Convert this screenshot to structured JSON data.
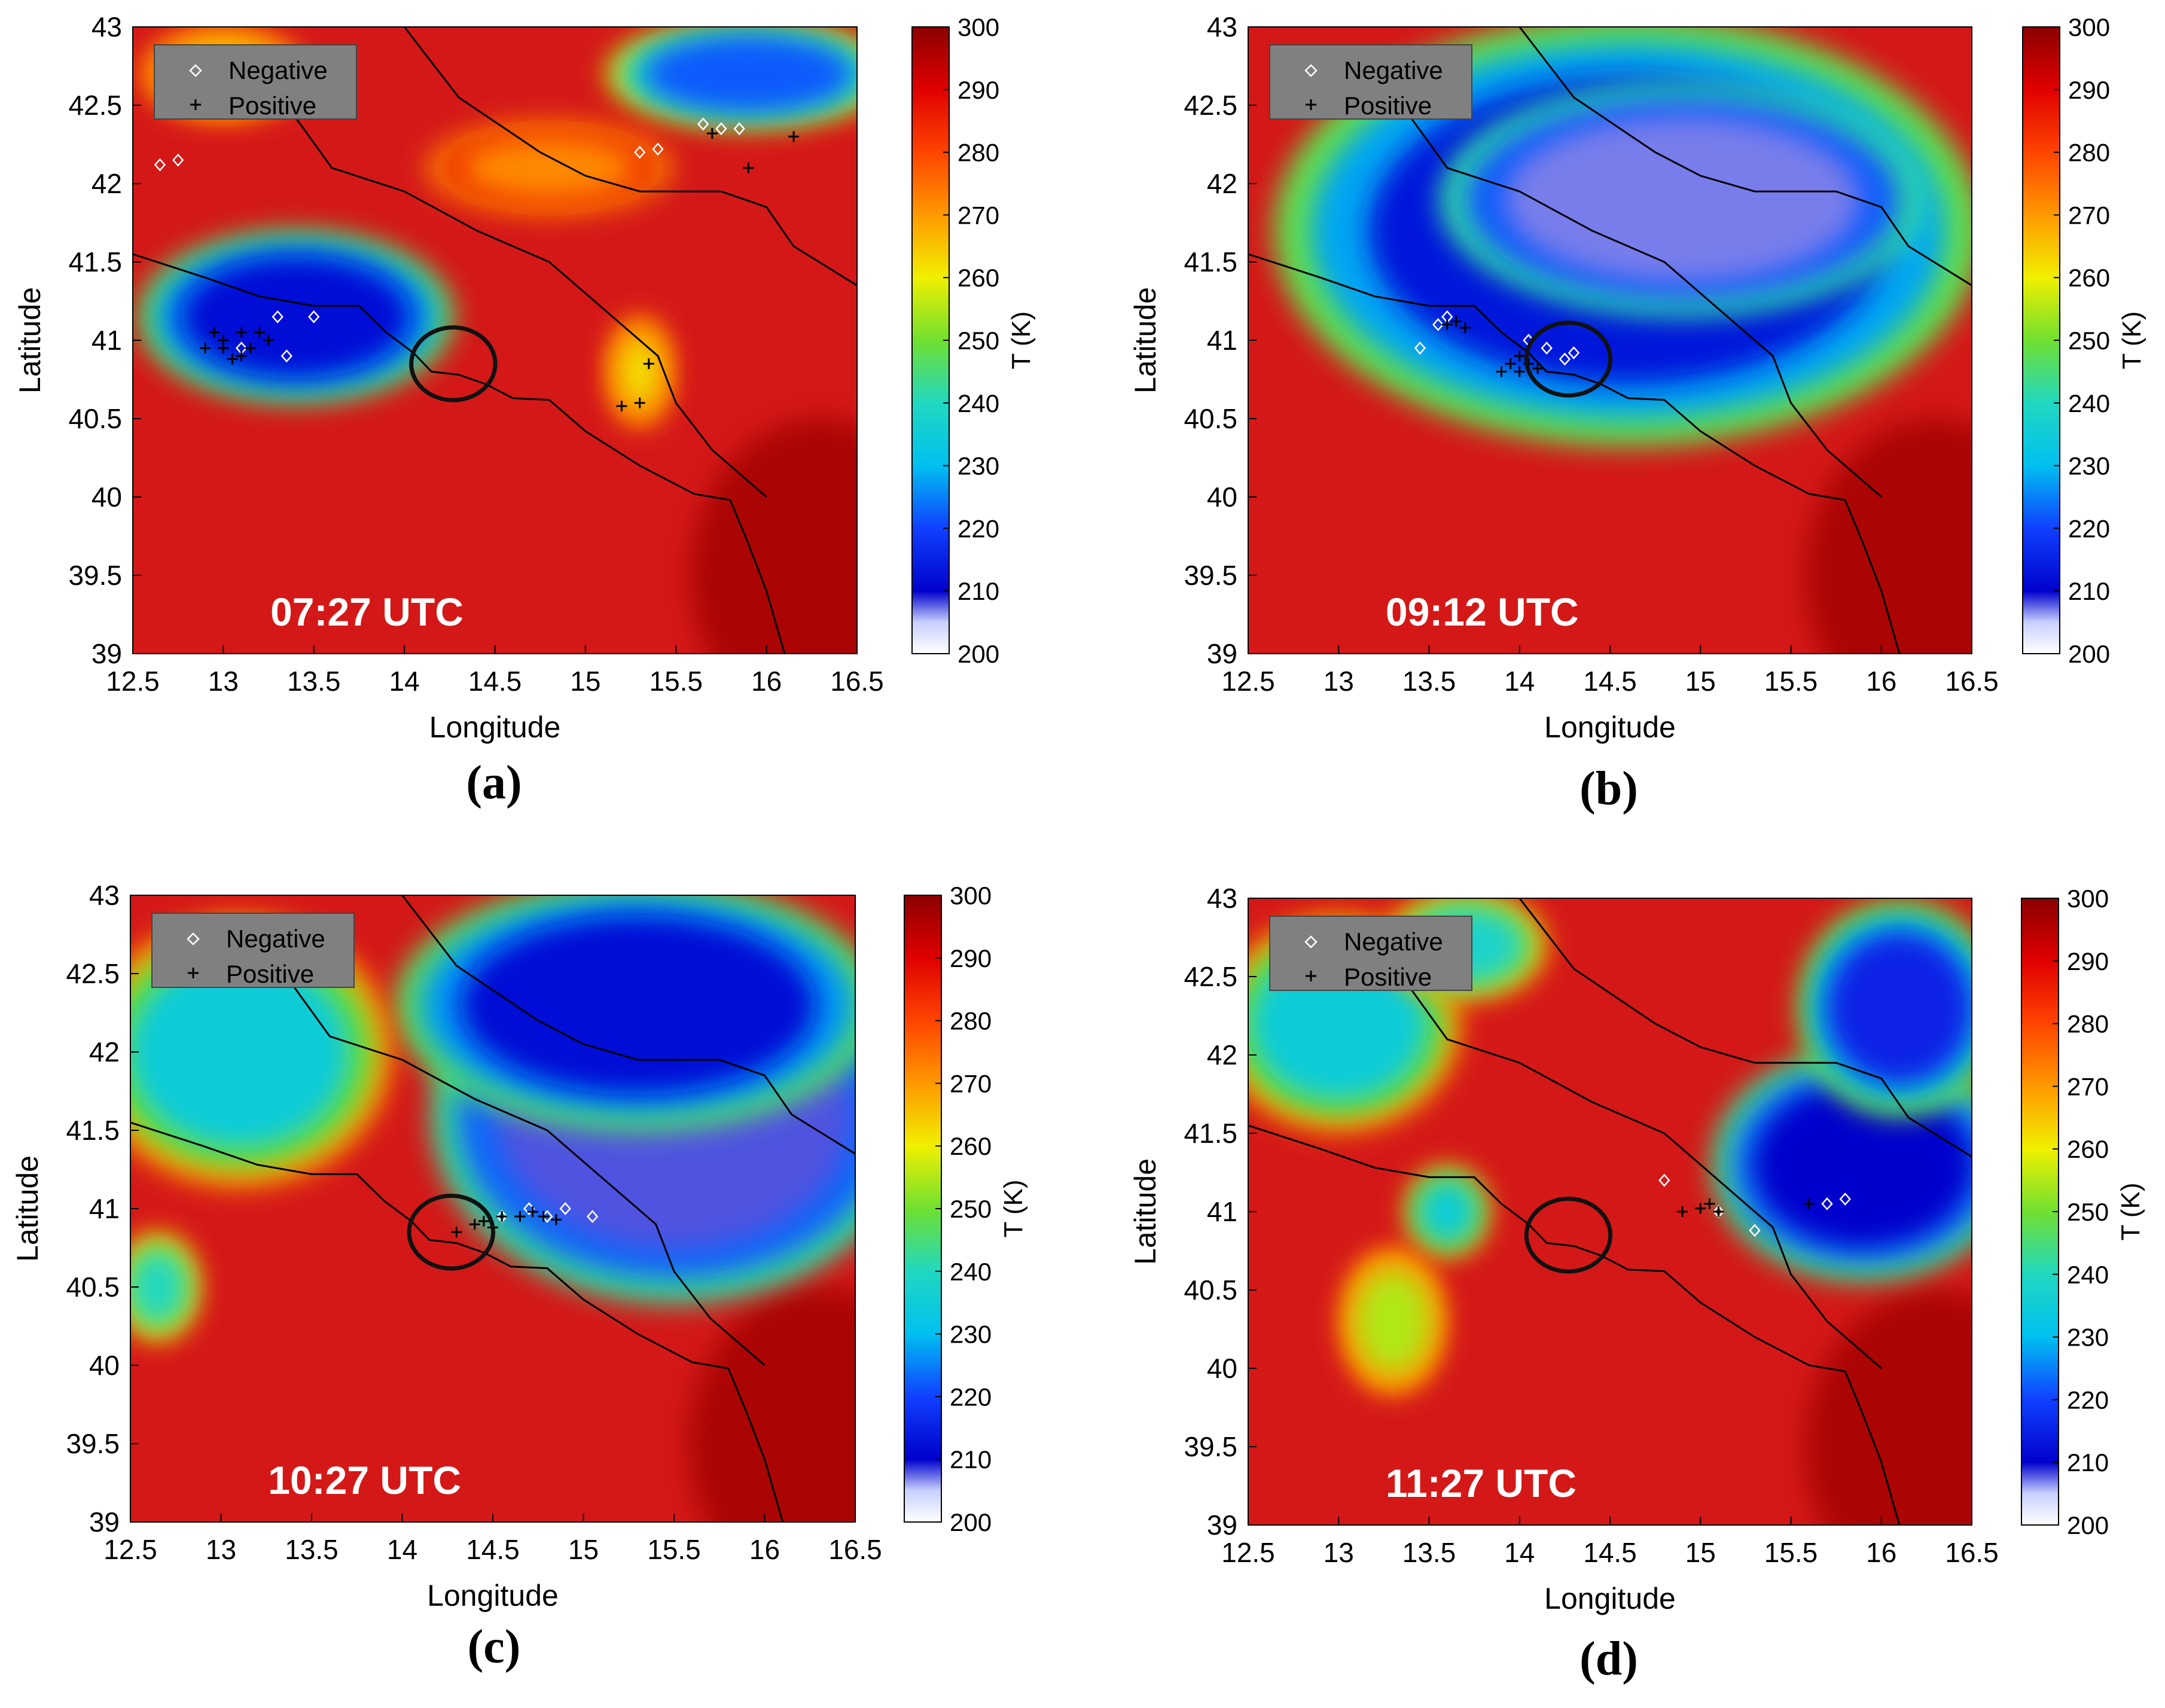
{
  "chart_data": [
    {
      "type": "heatmap",
      "panel_label": "(a)",
      "timestamp": "07:27 UTC",
      "xlabel": "Longitude",
      "ylabel": "Latitude",
      "xlim": [
        12.5,
        16.5
      ],
      "ylim": [
        39,
        43
      ],
      "xticks": [
        "12.5",
        "13",
        "13.5",
        "14",
        "14.5",
        "15",
        "15.5",
        "16",
        "16.5"
      ],
      "yticks": [
        "39",
        "39.5",
        "40",
        "40.5",
        "41",
        "41.5",
        "42",
        "42.5",
        "43"
      ],
      "colorbar": {
        "label": "T (K)",
        "range": [
          200,
          300
        ],
        "ticks": [
          "200",
          "210",
          "220",
          "230",
          "240",
          "250",
          "260",
          "270",
          "280",
          "290",
          "300"
        ]
      },
      "legend": {
        "position": "top-left",
        "entries": [
          "Negative",
          "Positive"
        ]
      },
      "circle_center": [
        14.27,
        40.85
      ],
      "cold_clouds": [
        {
          "lon": 13.4,
          "lat": 41.15,
          "rlon": 0.78,
          "rlat": 0.48,
          "t": 212
        },
        {
          "lon": 15.9,
          "lat": 42.7,
          "rlon": 0.7,
          "rlat": 0.3,
          "t": 222
        },
        {
          "lon": 13.0,
          "lat": 42.7,
          "rlon": 0.4,
          "rlat": 0.25,
          "t": 262
        },
        {
          "lon": 15.3,
          "lat": 40.8,
          "rlon": 0.15,
          "rlat": 0.3,
          "t": 262
        },
        {
          "lon": 14.8,
          "lat": 42.1,
          "rlon": 0.6,
          "rlat": 0.25,
          "t": 272
        }
      ],
      "negative_strikes": [
        [
          12.65,
          42.12
        ],
        [
          12.75,
          42.15
        ],
        [
          13.3,
          41.15
        ],
        [
          13.5,
          41.15
        ],
        [
          13.35,
          40.9
        ],
        [
          13.1,
          40.95
        ],
        [
          15.3,
          42.2
        ],
        [
          15.4,
          42.22
        ],
        [
          15.65,
          42.38
        ],
        [
          15.75,
          42.35
        ],
        [
          15.85,
          42.35
        ]
      ],
      "positive_strikes": [
        [
          12.9,
          40.95
        ],
        [
          13.0,
          41.0
        ],
        [
          13.1,
          40.9
        ],
        [
          13.2,
          41.05
        ],
        [
          12.95,
          41.05
        ],
        [
          13.05,
          40.88
        ],
        [
          13.15,
          40.95
        ],
        [
          13.25,
          41.0
        ],
        [
          13.0,
          40.95
        ],
        [
          13.1,
          41.05
        ],
        [
          15.3,
          40.6
        ],
        [
          15.2,
          40.58
        ],
        [
          15.35,
          40.85
        ],
        [
          15.7,
          42.32
        ],
        [
          15.9,
          42.1
        ],
        [
          16.15,
          42.3
        ]
      ]
    },
    {
      "type": "heatmap",
      "panel_label": "(b)",
      "timestamp": "09:12 UTC",
      "xlabel": "Longitude",
      "ylabel": "Latitude",
      "xlim": [
        12.5,
        16.5
      ],
      "ylim": [
        39,
        43
      ],
      "xticks": [
        "12.5",
        "13",
        "13.5",
        "14",
        "14.5",
        "15",
        "15.5",
        "16",
        "16.5"
      ],
      "yticks": [
        "39",
        "39.5",
        "40",
        "40.5",
        "41",
        "41.5",
        "42",
        "42.5",
        "43"
      ],
      "colorbar": {
        "label": "T (K)",
        "range": [
          200,
          300
        ],
        "ticks": [
          "200",
          "210",
          "220",
          "230",
          "240",
          "250",
          "260",
          "270",
          "280",
          "290",
          "300"
        ]
      },
      "legend": {
        "position": "top-left",
        "entries": [
          "Negative",
          "Positive"
        ]
      },
      "circle_center": [
        14.27,
        40.88
      ],
      "cold_clouds": [
        {
          "lon": 14.6,
          "lat": 41.7,
          "rlon": 1.75,
          "rlat": 1.2,
          "t": 213
        },
        {
          "lon": 14.9,
          "lat": 41.9,
          "rlon": 1.2,
          "rlat": 0.65,
          "t": 207
        }
      ],
      "negative_strikes": [
        [
          13.55,
          41.1
        ],
        [
          13.6,
          41.15
        ],
        [
          14.05,
          41.0
        ],
        [
          14.15,
          40.95
        ],
        [
          14.25,
          40.88
        ],
        [
          14.3,
          40.92
        ],
        [
          13.45,
          40.95
        ]
      ],
      "positive_strikes": [
        [
          13.6,
          41.1
        ],
        [
          13.65,
          41.12
        ],
        [
          13.7,
          41.08
        ],
        [
          13.95,
          40.85
        ],
        [
          14.0,
          40.8
        ],
        [
          14.05,
          40.85
        ],
        [
          13.9,
          40.8
        ],
        [
          14.0,
          40.9
        ],
        [
          14.1,
          40.82
        ]
      ]
    },
    {
      "type": "heatmap",
      "panel_label": "(c)",
      "timestamp": "10:27 UTC",
      "xlabel": "Longitude",
      "ylabel": "Latitude",
      "xlim": [
        12.5,
        16.5
      ],
      "ylim": [
        39,
        43
      ],
      "xticks": [
        "12.5",
        "13",
        "13.5",
        "14",
        "14.5",
        "15",
        "15.5",
        "16",
        "16.5"
      ],
      "yticks": [
        "39",
        "39.5",
        "40",
        "40.5",
        "41",
        "41.5",
        "42",
        "42.5",
        "43"
      ],
      "colorbar": {
        "label": "T (K)",
        "range": [
          200,
          300
        ],
        "ticks": [
          "200",
          "210",
          "220",
          "230",
          "240",
          "250",
          "260",
          "270",
          "280",
          "290",
          "300"
        ]
      },
      "legend": {
        "position": "top-left",
        "entries": [
          "Negative",
          "Positive"
        ]
      },
      "circle_center": [
        14.27,
        40.85
      ],
      "cold_clouds": [
        {
          "lon": 15.5,
          "lat": 41.6,
          "rlon": 1.2,
          "rlat": 1.05,
          "t": 208
        },
        {
          "lon": 15.3,
          "lat": 42.3,
          "rlon": 1.2,
          "rlat": 0.7,
          "t": 212
        },
        {
          "lon": 13.1,
          "lat": 42.0,
          "rlon": 0.75,
          "rlat": 0.75,
          "t": 235
        },
        {
          "lon": 12.65,
          "lat": 40.5,
          "rlon": 0.2,
          "rlat": 0.3,
          "t": 240
        }
      ],
      "negative_strikes": [
        [
          14.55,
          40.95
        ],
        [
          14.7,
          41.0
        ],
        [
          14.8,
          40.95
        ],
        [
          14.9,
          41.0
        ],
        [
          15.05,
          40.95
        ]
      ],
      "positive_strikes": [
        [
          14.4,
          40.9
        ],
        [
          14.45,
          40.92
        ],
        [
          14.5,
          40.88
        ],
        [
          14.55,
          40.95
        ],
        [
          14.65,
          40.95
        ],
        [
          14.72,
          40.98
        ],
        [
          14.78,
          40.95
        ],
        [
          14.85,
          40.93
        ],
        [
          14.3,
          40.85
        ]
      ]
    },
    {
      "type": "heatmap",
      "panel_label": "(d)",
      "timestamp": "11:27 UTC",
      "xlabel": "Longitude",
      "ylabel": "Latitude",
      "xlim": [
        12.5,
        16.5
      ],
      "ylim": [
        39,
        43
      ],
      "xticks": [
        "12.5",
        "13",
        "13.5",
        "14",
        "14.5",
        "15",
        "15.5",
        "16",
        "16.5"
      ],
      "yticks": [
        "39",
        "39.5",
        "40",
        "40.5",
        "41",
        "41.5",
        "42",
        "42.5",
        "43"
      ],
      "colorbar": {
        "label": "T (K)",
        "range": [
          200,
          300
        ],
        "ticks": [
          "200",
          "210",
          "220",
          "230",
          "240",
          "250",
          "260",
          "270",
          "280",
          "290",
          "300"
        ]
      },
      "legend": {
        "position": "top-left",
        "entries": [
          "Negative",
          "Positive"
        ]
      },
      "circle_center": [
        14.27,
        40.85
      ],
      "cold_clouds": [
        {
          "lon": 15.9,
          "lat": 41.3,
          "rlon": 0.75,
          "rlat": 0.65,
          "t": 210
        },
        {
          "lon": 16.1,
          "lat": 42.3,
          "rlon": 0.5,
          "rlat": 0.6,
          "t": 215
        },
        {
          "lon": 13.0,
          "lat": 42.2,
          "rlon": 0.6,
          "rlat": 0.6,
          "t": 235
        },
        {
          "lon": 13.7,
          "lat": 42.7,
          "rlon": 0.4,
          "rlat": 0.3,
          "t": 238
        },
        {
          "lon": 13.6,
          "lat": 41.0,
          "rlon": 0.2,
          "rlat": 0.25,
          "t": 235
        },
        {
          "lon": 13.3,
          "lat": 40.3,
          "rlon": 0.25,
          "rlat": 0.4,
          "t": 255
        }
      ],
      "negative_strikes": [
        [
          14.8,
          41.2
        ],
        [
          15.1,
          41.0
        ],
        [
          15.7,
          41.05
        ],
        [
          15.8,
          41.08
        ],
        [
          15.3,
          40.88
        ]
      ],
      "positive_strikes": [
        [
          14.9,
          41.0
        ],
        [
          15.0,
          41.02
        ],
        [
          15.05,
          41.05
        ],
        [
          15.1,
          41.0
        ],
        [
          15.6,
          41.05
        ]
      ]
    }
  ],
  "colors": {
    "warm": "#d41818",
    "strike_negative": "#ffffff",
    "strike_positive": "#000000",
    "legend_bg": "#808080",
    "annotation_text": "#ffffff"
  }
}
